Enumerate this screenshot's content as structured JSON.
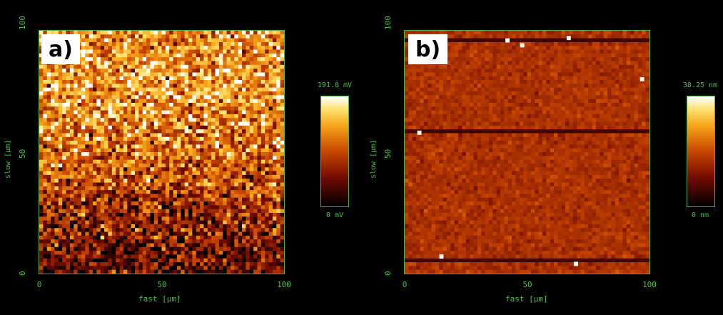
{
  "chart_data": [
    {
      "type": "heatmap",
      "panel_label": "a)",
      "xlabel": "fast [µm]",
      "ylabel": "slow [µm]",
      "xlim": [
        0,
        100
      ],
      "ylim": [
        0,
        100
      ],
      "x_ticks": [
        "0",
        "50",
        "100"
      ],
      "y_ticks": [
        "0",
        "50",
        "100"
      ],
      "colorbar": {
        "min_label": "0 mV",
        "max_label": "191.8 mV",
        "min": 0,
        "max": 191.8,
        "unit": "mV"
      },
      "grid": {
        "rows": 64,
        "cols": 64
      },
      "mean_profile": {
        "slow_um": [
          0,
          25,
          50,
          75,
          100
        ],
        "value_mV": [
          35,
          70,
          115,
          135,
          135
        ]
      },
      "noise_mV": 55,
      "seed": 7,
      "colormap": "afm-hot"
    },
    {
      "type": "heatmap",
      "panel_label": "b)",
      "xlabel": "fast [µm]",
      "ylabel": "slow [µm]",
      "xlim": [
        0,
        100
      ],
      "ylim": [
        0,
        100
      ],
      "x_ticks": [
        "0",
        "50",
        "100"
      ],
      "y_ticks": [
        "0",
        "50",
        "100"
      ],
      "colorbar": {
        "min_label": "0 nm",
        "max_label": "38.25 nm",
        "min": 0,
        "max": 38.25,
        "unit": "nm"
      },
      "grid": {
        "rows": 64,
        "cols": 64
      },
      "mean_profile": {
        "slow_um": [
          0,
          50,
          100
        ],
        "value_nm": [
          16,
          16,
          16
        ]
      },
      "noise_nm": 2.5,
      "seed": 13,
      "colormap": "afm-hot",
      "dark_scan_lines_slow_um": [
        97,
        58,
        4
      ],
      "bright_spots": [
        {
          "fast_um": 42,
          "slow_um": 96,
          "value_nm": 38
        },
        {
          "fast_um": 48,
          "slow_um": 94,
          "value_nm": 38
        },
        {
          "fast_um": 67,
          "slow_um": 97,
          "value_nm": 38
        },
        {
          "fast_um": 97,
          "slow_um": 80,
          "value_nm": 38
        },
        {
          "fast_um": 6,
          "slow_um": 58,
          "value_nm": 38
        },
        {
          "fast_um": 15,
          "slow_um": 7,
          "value_nm": 38
        },
        {
          "fast_um": 70,
          "slow_um": 4,
          "value_nm": 38
        }
      ]
    }
  ]
}
